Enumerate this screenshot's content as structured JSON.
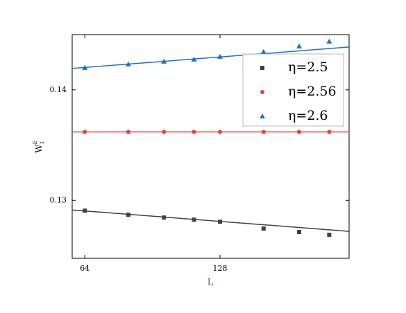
{
  "chart_data": {
    "type": "scatter",
    "xlabel": "L",
    "ylabel": {
      "base": "W",
      "sub": "1",
      "sup": "E"
    },
    "x": [
      64,
      80,
      96,
      112,
      128,
      160,
      192,
      224
    ],
    "xlim": [
      60,
      248
    ],
    "xticks": [
      64,
      128
    ],
    "xscale": "log",
    "ylim": [
      0.12475,
      0.145
    ],
    "yticks": [
      0.13,
      0.14
    ],
    "legend": "upper right",
    "fit_x": [
      60,
      248
    ],
    "series": [
      {
        "name": "η=2.5",
        "color": "#404040",
        "marker": "square",
        "values": [
          0.12906,
          0.12869,
          0.12844,
          0.12825,
          0.12806,
          0.12744,
          0.12713,
          0.12688
        ],
        "fit_values": [
          0.129125,
          0.12719
        ]
      },
      {
        "name": "η=2.56",
        "color": "#e8413a",
        "marker": "circle",
        "values": [
          0.13619,
          0.13619,
          0.13619,
          0.13619,
          0.13619,
          0.13619,
          0.13619,
          0.13619
        ],
        "fit_values": [
          0.13619,
          0.13619
        ]
      },
      {
        "name": "η=2.6",
        "color": "#1a6fd1",
        "marker": "triangle",
        "values": [
          0.142,
          0.14231,
          0.14256,
          0.14275,
          0.143,
          0.14344,
          0.14394,
          0.14438
        ],
        "fit_values": [
          0.14194,
          0.14388
        ]
      }
    ]
  }
}
